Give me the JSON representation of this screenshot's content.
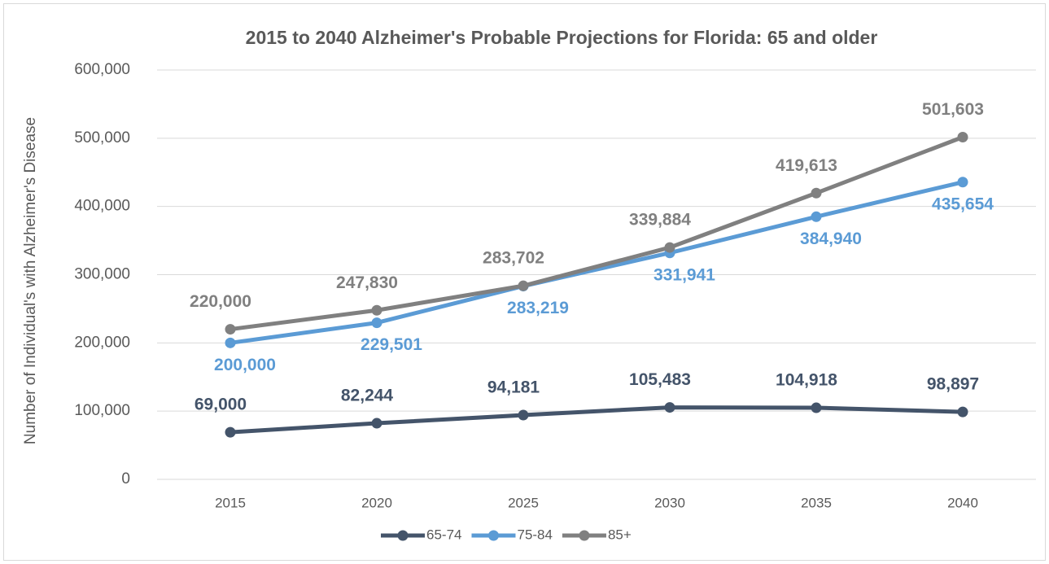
{
  "chart_data": {
    "type": "line",
    "title": "2015 to 2040 Alzheimer's Probable Projections for Florida: 65 and older",
    "y_label": "Number of Individual's with Alzheimer's Disease",
    "categories": [
      "2015",
      "2020",
      "2025",
      "2030",
      "2035",
      "2040"
    ],
    "series": [
      {
        "name": "65-74",
        "color": "#44546a",
        "values": [
          69000,
          82244,
          94181,
          105483,
          104918,
          98897
        ],
        "value_labels": [
          "69,000",
          "82,244",
          "94,181",
          "105,483",
          "104,918",
          "98,897"
        ]
      },
      {
        "name": "75-84",
        "color": "#5b9bd5",
        "values": [
          200000,
          229501,
          283219,
          331941,
          384940,
          435654
        ],
        "value_labels": [
          "200,000",
          "229,501",
          "283,219",
          "331,941",
          "384,940",
          "435,654"
        ]
      },
      {
        "name": "85+",
        "color": "#808080",
        "values": [
          220000,
          247830,
          283702,
          339884,
          419613,
          501603
        ],
        "value_labels": [
          "220,000",
          "247,830",
          "283,702",
          "339,884",
          "419,613",
          "501,603"
        ]
      }
    ],
    "ylim": [
      0,
      600000
    ],
    "yticks": [
      0,
      {
        "value": 100000,
        "label": "100,000"
      },
      {
        "value": 200000,
        "label": "200,000"
      },
      {
        "value": 300000,
        "label": "300,000"
      },
      {
        "value": 400000,
        "label": "400,000"
      },
      {
        "value": 500000,
        "label": "500,000"
      },
      {
        "value": 600000,
        "label": "600,000"
      }
    ],
    "grid": true,
    "legend": "bottom"
  }
}
